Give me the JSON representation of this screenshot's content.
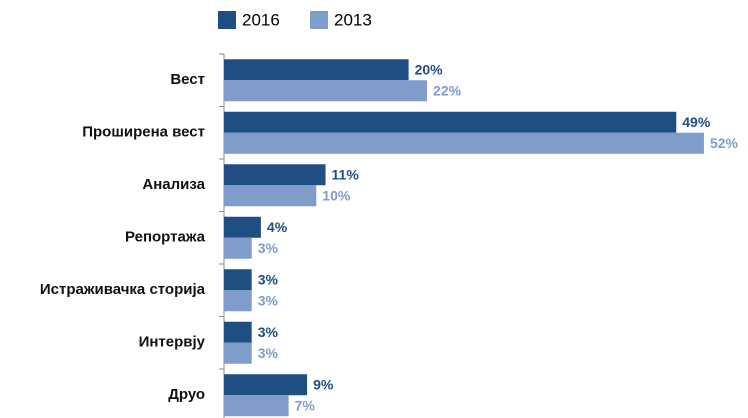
{
  "chart_data": {
    "type": "barh",
    "categories": [
      "Вест",
      "Проширена вест",
      "Анализа",
      "Репортажа",
      "Истраживачка сторија",
      "Интервју",
      "Друо"
    ],
    "series": [
      {
        "name": "2016",
        "color": "#1f4e82",
        "values": [
          20,
          49,
          11,
          4,
          3,
          3,
          9
        ],
        "value_labels": [
          "20%",
          "49%",
          "11%",
          "4%",
          "3%",
          "3%",
          "9%"
        ]
      },
      {
        "name": "2013",
        "color": "#7f9ccb",
        "values": [
          22,
          52,
          10,
          3,
          3,
          3,
          7
        ],
        "value_labels": [
          "22%",
          "52%",
          "10%",
          "3%",
          "3%",
          "3%",
          "7%"
        ]
      }
    ],
    "legend": "top"
  }
}
